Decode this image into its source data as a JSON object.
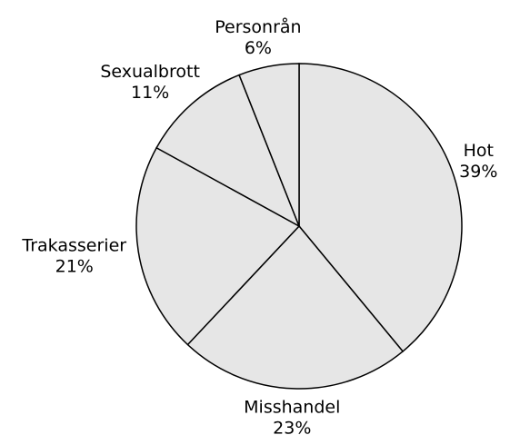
{
  "chart_data": {
    "type": "pie",
    "categories": [
      "Hot",
      "Misshandel",
      "Trakasserier",
      "Sexualbrott",
      "Personrån"
    ],
    "values": [
      39,
      23,
      21,
      11,
      6
    ],
    "value_labels": [
      "39%",
      "23%",
      "21%",
      "11%",
      "6%"
    ],
    "color": "#e6e6e6"
  }
}
